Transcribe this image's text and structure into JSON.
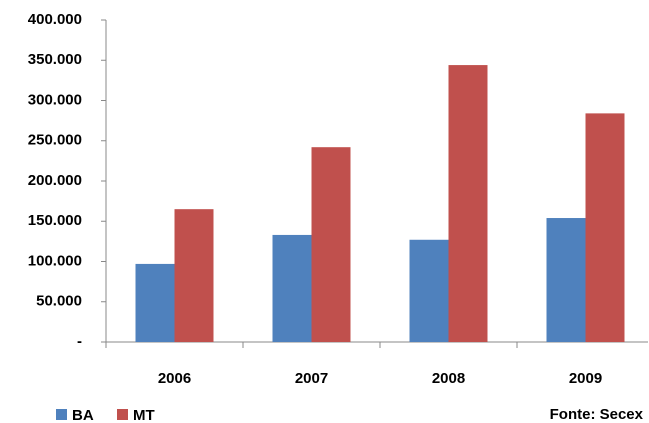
{
  "chart_data": {
    "type": "bar",
    "categories": [
      "2006",
      "2007",
      "2008",
      "2009"
    ],
    "series": [
      {
        "name": "BA",
        "color": "#4f81bd",
        "values": [
          97000,
          133000,
          127000,
          154000
        ]
      },
      {
        "name": "MT",
        "color": "#c0504d",
        "values": [
          165000,
          242000,
          344000,
          284000
        ]
      }
    ],
    "ylim": [
      0,
      400000
    ],
    "yticks": [
      {
        "value": 0,
        "label": "-"
      },
      {
        "value": 50000,
        "label": "50.000"
      },
      {
        "value": 100000,
        "label": "100.000"
      },
      {
        "value": 150000,
        "label": "150.000"
      },
      {
        "value": 200000,
        "label": "200.000"
      },
      {
        "value": 250000,
        "label": "250.000"
      },
      {
        "value": 300000,
        "label": "300.000"
      },
      {
        "value": 350000,
        "label": "350.000"
      },
      {
        "value": 400000,
        "label": "400.000"
      }
    ],
    "grid": false,
    "legend": "bottom-left",
    "source": "Fonte: Secex"
  }
}
